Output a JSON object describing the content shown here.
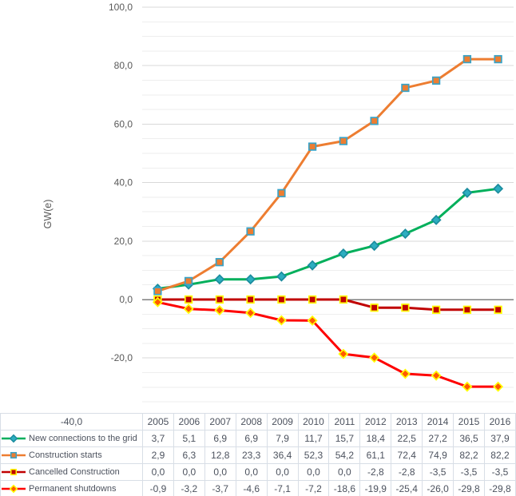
{
  "chart_data": {
    "type": "line",
    "title": "",
    "xlabel": "",
    "ylabel": "GW(e)",
    "number_format": "comma-decimal",
    "grid": true,
    "legend_position": "table-left",
    "categories": [
      "2005",
      "2006",
      "2007",
      "2008",
      "2009",
      "2010",
      "2011",
      "2012",
      "2013",
      "2014",
      "2015",
      "2016"
    ],
    "series": [
      {
        "name": "New connections to the grid",
        "values": [
          3.7,
          5.1,
          6.9,
          6.9,
          7.9,
          11.7,
          15.7,
          18.4,
          22.5,
          27.2,
          36.5,
          37.9
        ],
        "line_color": "#00AF5B",
        "marker": "diamond",
        "marker_fill": "#2CAEC0",
        "marker_stroke": "#1B8C9E"
      },
      {
        "name": "Construction starts",
        "values": [
          2.9,
          6.3,
          12.8,
          23.3,
          36.4,
          52.3,
          54.2,
          61.1,
          72.4,
          74.9,
          82.2,
          82.2
        ],
        "line_color": "#ED7D31",
        "marker": "square",
        "marker_fill": "#ED7D31",
        "marker_stroke": "#38A3C8"
      },
      {
        "name": "Cancelled Construction",
        "values": [
          0.0,
          0.0,
          0.0,
          0.0,
          0.0,
          0.0,
          0.0,
          -2.8,
          -2.8,
          -3.5,
          -3.5,
          -3.5
        ],
        "line_color": "#C00000",
        "marker": "square",
        "marker_fill": "#C00000",
        "marker_stroke": "#FFFF00"
      },
      {
        "name": "Permanent shutdowns",
        "values": [
          -0.9,
          -3.2,
          -3.7,
          -4.6,
          -7.1,
          -7.2,
          -18.6,
          -19.9,
          -25.4,
          -26.0,
          -29.8,
          -29.8
        ],
        "line_color": "#FE0000",
        "marker": "diamond",
        "marker_fill": "#FF5A00",
        "marker_stroke": "#FFFF00"
      }
    ],
    "y_axis": {
      "min": -40,
      "max": 100,
      "major_step": 20,
      "minor_step": 5,
      "tick_labels": [
        "100,0",
        "80,0",
        "60,0",
        "40,0",
        "20,0",
        "0,0",
        "-20,0",
        "-40,0"
      ]
    }
  },
  "colors": {
    "background": "#FFFFFF",
    "axis_text": "#595959",
    "table_text": "#4C525E",
    "table_border": "#D8DEE6",
    "grid_major": "#D9D9D9",
    "grid_minor": "#EEEEEE",
    "zero_line": "#7F7F7F"
  }
}
